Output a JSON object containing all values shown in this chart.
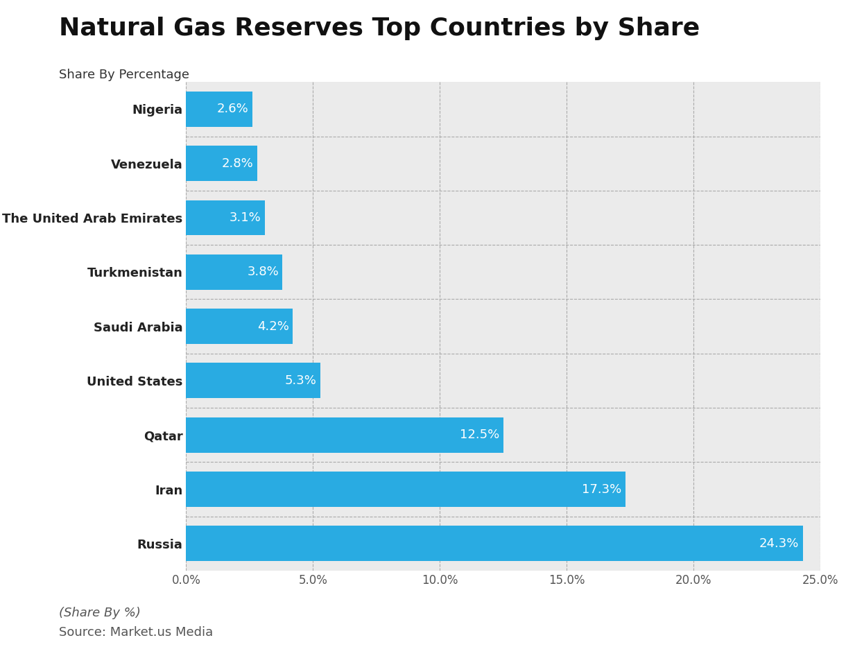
{
  "title": "Natural Gas Reserves Top Countries by Share",
  "subtitle": "Share By Percentage",
  "footnote": "(Share By %)",
  "source": "Source: Market.us Media",
  "bar_color": "#29ABE2",
  "background_color": "#ffffff",
  "plot_bg_color": "#ebebeb",
  "categories": [
    "Russia",
    "Iran",
    "Qatar",
    "United States",
    "Saudi Arabia",
    "Turkmenistan",
    "The United Arab Emirates",
    "Venezuela",
    "Nigeria"
  ],
  "values": [
    24.3,
    17.3,
    12.5,
    5.3,
    4.2,
    3.8,
    3.1,
    2.8,
    2.6
  ],
  "xlim": [
    0,
    25.0
  ],
  "xticks": [
    0,
    5.0,
    10.0,
    15.0,
    20.0,
    25.0
  ],
  "xtick_labels": [
    "0.0%",
    "5.0%",
    "10.0%",
    "15.0%",
    "20.0%",
    "25.0%"
  ],
  "label_fontsize": 13,
  "title_fontsize": 26,
  "subtitle_fontsize": 13,
  "tick_fontsize": 12,
  "bar_label_fontsize": 13,
  "footnote_fontsize": 13
}
